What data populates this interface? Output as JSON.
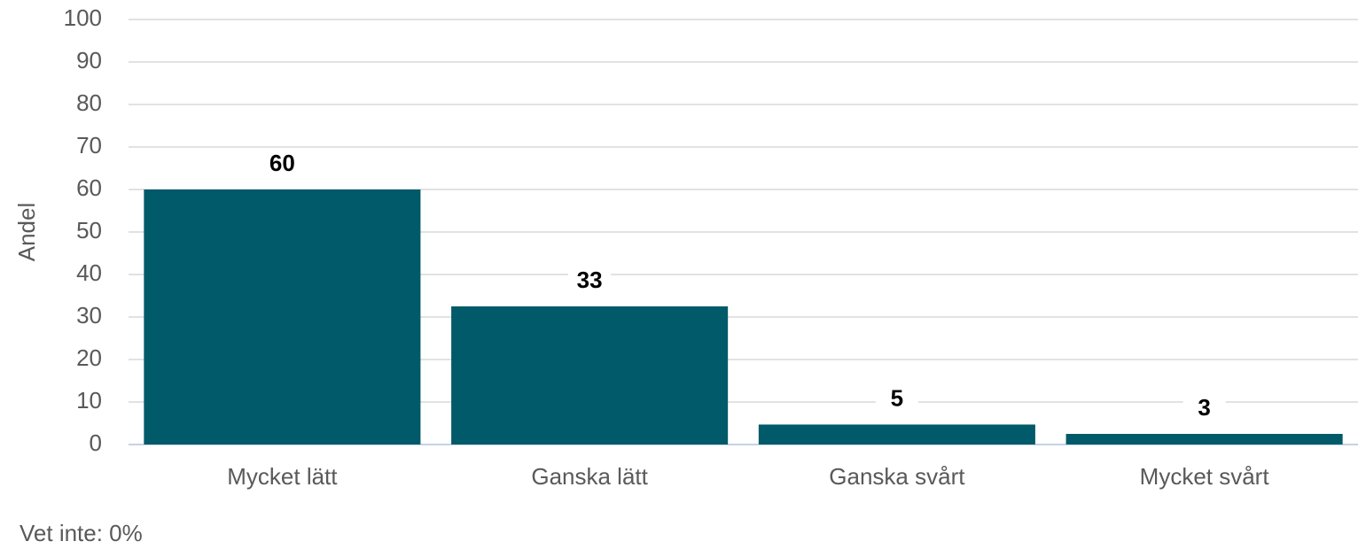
{
  "chart_data": {
    "type": "bar",
    "y_label": "Andel",
    "categories": [
      "Mycket lätt",
      "Ganska lätt",
      "Ganska svårt",
      "Mycket svårt"
    ],
    "values": [
      60,
      32.5,
      4.7,
      2.5
    ],
    "value_labels": [
      "60",
      "33",
      "5",
      "3"
    ],
    "color": "#005a69",
    "ylim": [
      0,
      100
    ],
    "yticks": [
      0,
      10,
      20,
      30,
      40,
      50,
      60,
      70,
      80,
      90,
      100
    ],
    "grid": true,
    "note": "Vet inte: 0%"
  }
}
